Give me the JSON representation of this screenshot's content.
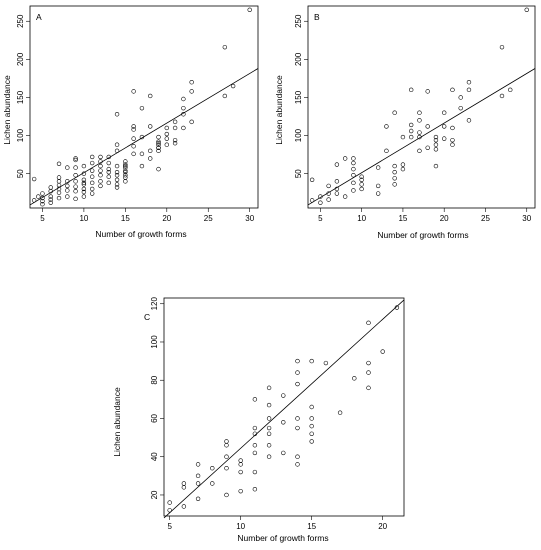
{
  "chart_data": [
    {
      "type": "scatter",
      "panel": "A",
      "xlabel": "Number of growth forms",
      "ylabel": "Lichen abundance",
      "xlim": [
        3.5,
        31
      ],
      "ylim": [
        5,
        270
      ],
      "xticks": [
        5,
        10,
        15,
        20,
        25,
        30
      ],
      "yticks": [
        50,
        100,
        150,
        200,
        250
      ],
      "fit_line": [
        [
          3.5,
          9
        ],
        [
          31,
          188
        ]
      ],
      "points": [
        [
          4,
          43
        ],
        [
          4,
          15
        ],
        [
          4.5,
          20
        ],
        [
          5,
          10
        ],
        [
          5,
          14
        ],
        [
          5,
          18
        ],
        [
          5,
          24
        ],
        [
          6,
          20
        ],
        [
          6,
          27
        ],
        [
          6,
          32
        ],
        [
          6,
          12
        ],
        [
          6,
          16
        ],
        [
          7,
          25
        ],
        [
          7,
          30
        ],
        [
          7,
          35
        ],
        [
          7,
          40
        ],
        [
          7,
          45
        ],
        [
          7,
          63
        ],
        [
          7,
          18
        ],
        [
          8,
          20
        ],
        [
          8,
          28
        ],
        [
          8,
          34
        ],
        [
          8,
          40
        ],
        [
          8,
          58
        ],
        [
          9,
          17
        ],
        [
          9,
          27
        ],
        [
          9,
          33
        ],
        [
          9,
          40
        ],
        [
          9,
          48
        ],
        [
          9,
          58
        ],
        [
          9,
          70
        ],
        [
          9,
          68
        ],
        [
          10,
          20
        ],
        [
          10,
          30
        ],
        [
          10,
          36
        ],
        [
          10,
          42
        ],
        [
          10,
          50
        ],
        [
          10,
          60
        ],
        [
          10,
          26
        ],
        [
          10,
          38
        ],
        [
          11,
          30
        ],
        [
          11,
          38
        ],
        [
          11,
          46
        ],
        [
          11,
          54
        ],
        [
          11,
          64
        ],
        [
          11,
          72
        ],
        [
          11,
          24
        ],
        [
          12,
          40
        ],
        [
          12,
          48
        ],
        [
          12,
          60
        ],
        [
          12,
          66
        ],
        [
          12,
          72
        ],
        [
          12,
          34
        ],
        [
          12,
          54
        ],
        [
          13,
          38
        ],
        [
          13,
          46
        ],
        [
          13,
          56
        ],
        [
          13,
          64
        ],
        [
          13,
          72
        ],
        [
          13,
          52
        ],
        [
          14,
          36
        ],
        [
          14,
          42
        ],
        [
          14,
          52
        ],
        [
          14,
          60
        ],
        [
          14,
          80
        ],
        [
          14,
          88
        ],
        [
          14,
          128
        ],
        [
          14,
          32
        ],
        [
          14,
          48
        ],
        [
          15,
          40
        ],
        [
          15,
          48
        ],
        [
          15,
          54
        ],
        [
          15,
          58
        ],
        [
          15,
          62
        ],
        [
          15,
          66
        ],
        [
          15,
          45
        ],
        [
          15,
          52
        ],
        [
          15,
          60
        ],
        [
          16,
          76
        ],
        [
          16,
          86
        ],
        [
          16,
          96
        ],
        [
          16,
          108
        ],
        [
          16,
          158
        ],
        [
          16,
          112
        ],
        [
          17,
          60
        ],
        [
          17,
          76
        ],
        [
          17,
          98
        ],
        [
          17,
          136
        ],
        [
          18,
          70
        ],
        [
          18,
          80
        ],
        [
          18,
          112
        ],
        [
          18,
          152
        ],
        [
          19,
          56
        ],
        [
          19,
          80
        ],
        [
          19,
          84
        ],
        [
          19,
          88
        ],
        [
          19,
          92
        ],
        [
          19,
          98
        ],
        [
          19,
          84
        ],
        [
          19,
          90
        ],
        [
          20,
          88
        ],
        [
          20,
          96
        ],
        [
          20,
          110
        ],
        [
          20,
          102
        ],
        [
          21,
          90
        ],
        [
          21,
          94
        ],
        [
          21,
          110
        ],
        [
          21,
          118
        ],
        [
          22,
          110
        ],
        [
          22,
          128
        ],
        [
          22,
          136
        ],
        [
          22,
          148
        ],
        [
          23,
          118
        ],
        [
          23,
          158
        ],
        [
          23,
          170
        ],
        [
          27,
          152
        ],
        [
          27,
          216
        ],
        [
          28,
          165
        ],
        [
          30,
          265
        ]
      ]
    },
    {
      "type": "scatter",
      "panel": "B",
      "xlabel": "Number of growth forms",
      "ylabel": "Lichen abundance",
      "xlim": [
        3.5,
        31
      ],
      "ylim": [
        5,
        270
      ],
      "xticks": [
        5,
        10,
        15,
        20,
        25,
        30
      ],
      "yticks": [
        50,
        100,
        150,
        200,
        250
      ],
      "fit_line": [
        [
          3.5,
          9
        ],
        [
          31,
          188
        ]
      ],
      "points": [
        [
          4,
          15
        ],
        [
          4,
          42
        ],
        [
          5,
          12
        ],
        [
          5,
          20
        ],
        [
          6,
          16
        ],
        [
          6,
          24
        ],
        [
          6,
          34
        ],
        [
          7,
          24
        ],
        [
          7,
          30
        ],
        [
          7,
          40
        ],
        [
          7,
          62
        ],
        [
          8,
          20
        ],
        [
          8,
          70
        ],
        [
          9,
          28
        ],
        [
          9,
          38
        ],
        [
          9,
          48
        ],
        [
          9,
          56
        ],
        [
          9,
          64
        ],
        [
          9,
          70
        ],
        [
          10,
          30
        ],
        [
          10,
          36
        ],
        [
          10,
          42
        ],
        [
          10,
          46
        ],
        [
          12,
          24
        ],
        [
          12,
          34
        ],
        [
          12,
          58
        ],
        [
          13,
          80
        ],
        [
          13,
          112
        ],
        [
          14,
          36
        ],
        [
          14,
          44
        ],
        [
          14,
          52
        ],
        [
          14,
          60
        ],
        [
          14,
          130
        ],
        [
          15,
          56
        ],
        [
          15,
          62
        ],
        [
          15,
          98
        ],
        [
          16,
          98
        ],
        [
          16,
          106
        ],
        [
          16,
          114
        ],
        [
          16,
          160
        ],
        [
          17,
          80
        ],
        [
          17,
          98
        ],
        [
          17,
          104
        ],
        [
          17,
          130
        ],
        [
          17,
          120
        ],
        [
          18,
          84
        ],
        [
          18,
          112
        ],
        [
          18,
          158
        ],
        [
          19,
          60
        ],
        [
          19,
          82
        ],
        [
          19,
          88
        ],
        [
          19,
          94
        ],
        [
          19,
          98
        ],
        [
          20,
          96
        ],
        [
          20,
          112
        ],
        [
          20,
          130
        ],
        [
          21,
          88
        ],
        [
          21,
          94
        ],
        [
          21,
          110
        ],
        [
          21,
          160
        ],
        [
          22,
          136
        ],
        [
          22,
          150
        ],
        [
          23,
          120
        ],
        [
          23,
          160
        ],
        [
          23,
          170
        ],
        [
          27,
          152
        ],
        [
          27,
          216
        ],
        [
          28,
          160
        ],
        [
          30,
          265
        ]
      ]
    },
    {
      "type": "scatter",
      "panel": "C",
      "xlabel": "Number of growth forms",
      "ylabel": "Lichen abundance",
      "xlim": [
        4.6,
        21.5
      ],
      "ylim": [
        9,
        123
      ],
      "xticks": [
        5,
        10,
        15,
        20
      ],
      "yticks": [
        20,
        40,
        60,
        80,
        100,
        120
      ],
      "fit_line": [
        [
          4.6,
          8
        ],
        [
          21.5,
          122
        ]
      ],
      "points": [
        [
          5,
          12
        ],
        [
          5,
          16
        ],
        [
          6,
          14
        ],
        [
          6,
          24
        ],
        [
          6,
          26
        ],
        [
          7,
          18
        ],
        [
          7,
          26
        ],
        [
          7,
          30
        ],
        [
          7,
          36
        ],
        [
          8,
          26
        ],
        [
          8,
          34
        ],
        [
          9,
          20
        ],
        [
          9,
          34
        ],
        [
          9,
          40
        ],
        [
          9,
          46
        ],
        [
          9,
          48
        ],
        [
          10,
          22
        ],
        [
          10,
          32
        ],
        [
          10,
          36
        ],
        [
          10,
          38
        ],
        [
          11,
          23
        ],
        [
          11,
          32
        ],
        [
          11,
          42
        ],
        [
          11,
          46
        ],
        [
          11,
          52
        ],
        [
          11,
          55
        ],
        [
          11,
          70
        ],
        [
          12,
          40
        ],
        [
          12,
          46
        ],
        [
          12,
          52
        ],
        [
          12,
          55
        ],
        [
          12,
          60
        ],
        [
          12,
          67
        ],
        [
          12,
          76
        ],
        [
          13,
          42
        ],
        [
          13,
          58
        ],
        [
          13,
          72
        ],
        [
          14,
          36
        ],
        [
          14,
          40
        ],
        [
          14,
          55
        ],
        [
          14,
          60
        ],
        [
          14,
          78
        ],
        [
          14,
          84
        ],
        [
          14,
          90
        ],
        [
          15,
          48
        ],
        [
          15,
          52
        ],
        [
          15,
          56
        ],
        [
          15,
          60
        ],
        [
          15,
          66
        ],
        [
          15,
          90
        ],
        [
          16,
          89
        ],
        [
          17,
          63
        ],
        [
          18,
          81
        ],
        [
          19,
          76
        ],
        [
          19,
          84
        ],
        [
          19,
          89
        ],
        [
          19,
          110
        ],
        [
          20,
          95
        ],
        [
          21,
          118
        ]
      ]
    }
  ],
  "panels": {
    "a": {
      "letter": "A",
      "xlabel": "Number of growth forms",
      "ylabel": "Lichen abundance"
    },
    "b": {
      "letter": "B",
      "xlabel": "Number of growth forms",
      "ylabel": "Lichen abundance"
    },
    "c": {
      "letter": "C",
      "xlabel": "Number of growth forms",
      "ylabel": "Lichen abundance"
    }
  }
}
